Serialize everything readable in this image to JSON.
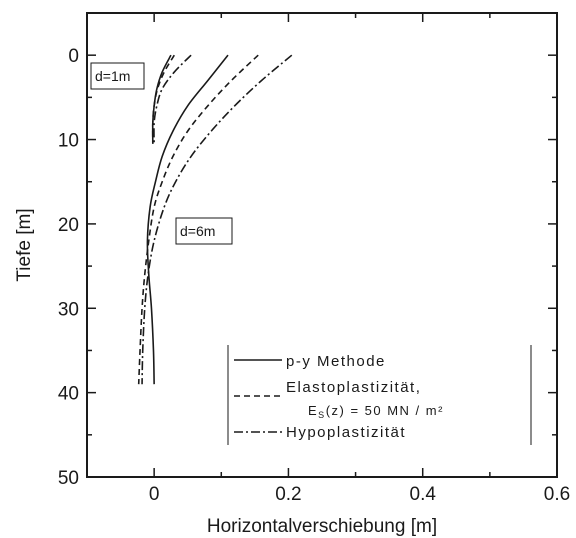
{
  "chart_data": {
    "type": "line",
    "title": "",
    "xlabel": "Horizontalverschiebung [m]",
    "ylabel": "Tiefe [m]",
    "xlim": [
      -0.1,
      0.6
    ],
    "ylim": [
      0,
      50
    ],
    "y_display_min": -5,
    "y_inverted": true,
    "x_ticks": [
      0,
      0.2,
      0.4,
      0.6
    ],
    "x_tick_labels": [
      "0",
      "0.2",
      "0.4",
      "0.6"
    ],
    "y_ticks": [
      0,
      10,
      20,
      30,
      40,
      50
    ],
    "y_tick_labels": [
      "0",
      "10",
      "20",
      "30",
      "40",
      "50"
    ],
    "grid": false,
    "legend_position": "bottom-right",
    "legend": {
      "entries": [
        "p-y Methode",
        "Elastoplastizität,",
        "Hypoplastizität"
      ],
      "subtext": "E",
      "subtext_sub": "S",
      "subtext_rest": "(z) = 50 MN / m²"
    },
    "annotations": [
      "d=1m",
      "d=6m"
    ],
    "series": [
      {
        "group": "d=1m",
        "style": "solid",
        "x": [
          0.025,
          0.012,
          0.004,
          0.0,
          -0.002,
          -0.002
        ],
        "y": [
          0,
          2,
          4,
          6,
          8,
          10.5
        ]
      },
      {
        "group": "d=1m",
        "style": "dashed",
        "x": [
          0.03,
          0.015,
          0.005,
          0.0,
          -0.002,
          -0.002
        ],
        "y": [
          0,
          2,
          4,
          6,
          8,
          10.5
        ]
      },
      {
        "group": "d=1m",
        "style": "dashdot",
        "x": [
          0.055,
          0.03,
          0.012,
          0.004,
          0.0,
          0.0
        ],
        "y": [
          0,
          2,
          4,
          6,
          8,
          10.5
        ]
      },
      {
        "group": "d=6m",
        "style": "solid",
        "x": [
          0.11,
          0.08,
          0.05,
          0.028,
          0.012,
          0.002,
          -0.006,
          -0.01,
          -0.008,
          -0.004,
          -0.001,
          0.0
        ],
        "y": [
          0,
          3,
          6,
          9,
          12,
          15,
          18,
          22,
          26,
          30,
          35,
          39
        ]
      },
      {
        "group": "d=6m",
        "style": "dashed",
        "x": [
          0.155,
          0.115,
          0.08,
          0.05,
          0.028,
          0.012,
          0.0,
          -0.008,
          -0.014,
          -0.018,
          -0.021,
          -0.023
        ],
        "y": [
          0,
          3,
          6,
          9,
          12,
          15,
          18,
          22,
          26,
          30,
          35,
          39
        ]
      },
      {
        "group": "d=6m",
        "style": "dashdot",
        "x": [
          0.205,
          0.16,
          0.12,
          0.085,
          0.055,
          0.032,
          0.015,
          0.0,
          -0.009,
          -0.014,
          -0.017,
          -0.018
        ],
        "y": [
          0,
          3,
          6,
          9,
          12,
          15,
          18,
          22,
          26,
          30,
          35,
          39
        ]
      }
    ]
  }
}
